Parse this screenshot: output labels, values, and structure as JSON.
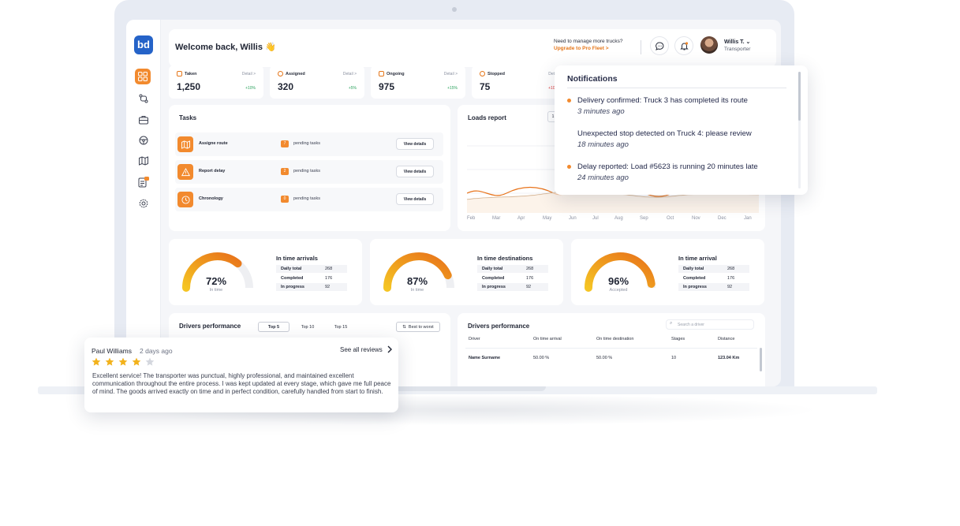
{
  "header": {
    "welcome": "Welcome back, Willis 👋",
    "promo_line1": "Need to manage more trucks?",
    "promo_line2": "Upgrade to Pro Fleet >",
    "user_name": "Willis T.  ⌄",
    "user_role": "Transporter"
  },
  "stats": [
    {
      "label": "Taken",
      "detail": "Detail >",
      "value": "1,250",
      "delta": "+10%",
      "delta_color": "#2fa360"
    },
    {
      "label": "Assigned",
      "detail": "Detail >",
      "value": "320",
      "delta": "+5%",
      "delta_color": "#2fa360"
    },
    {
      "label": "Ongoing",
      "detail": "Detail >",
      "value": "975",
      "delta": "+15%",
      "delta_color": "#2fa360"
    },
    {
      "label": "Stopped",
      "detail": "Detail",
      "value": "75",
      "delta": "+10%",
      "delta_color": "#e03b3b"
    }
  ],
  "tasks": {
    "title": "Tasks",
    "rows": [
      {
        "name": "Assigne route",
        "count": "7",
        "pending": "pending tasks",
        "button": "View details",
        "icon": "map-icon"
      },
      {
        "name": "Report delay",
        "count": "2",
        "pending": "pending tasks",
        "button": "View details",
        "icon": "warning-icon"
      },
      {
        "name": "Chronology",
        "count": "0",
        "pending": "pending tasks",
        "button": "View details",
        "icon": "clock-icon"
      }
    ]
  },
  "loads_report": {
    "title": "Loads report",
    "months": [
      "Feb",
      "Mar",
      "Apr",
      "May",
      "Jun",
      "Jul",
      "Aug",
      "Sep",
      "Oct",
      "Nov",
      "Dec",
      "Jan"
    ]
  },
  "gauges": [
    {
      "title": "In time arrivals",
      "pct_text": "72%",
      "sub": "In time",
      "pct": 72,
      "rows": [
        [
          "Daily total",
          "268"
        ],
        [
          "Completed",
          "176"
        ],
        [
          "In progress",
          "92"
        ]
      ]
    },
    {
      "title": "In time destinations",
      "pct_text": "87%",
      "sub": "In time",
      "pct": 87,
      "rows": [
        [
          "Daily total",
          "268"
        ],
        [
          "Completed",
          "176"
        ],
        [
          "In progress",
          "92"
        ]
      ]
    },
    {
      "title": "In time arrival",
      "pct_text": "96%",
      "sub": "Accepted",
      "pct": 96,
      "rows": [
        [
          "Daily total",
          "268"
        ],
        [
          "Completed",
          "176"
        ],
        [
          "In progress",
          "92"
        ]
      ]
    }
  ],
  "drivers_left": {
    "title": "Drivers performance",
    "tabs": [
      "Top 5",
      "Top 10",
      "Top 15"
    ],
    "sort": "Best to worst"
  },
  "drivers_right": {
    "title": "Drivers performance",
    "search_placeholder": "Search a driver",
    "columns": [
      "Driver",
      "On time arrival",
      "On time destination",
      "Stages",
      "Distance"
    ],
    "row": [
      "Name Surname",
      "50.00 %",
      "50.00 %",
      "10",
      "123.04 Km"
    ]
  },
  "notifications": {
    "title": "Notifications",
    "items": [
      {
        "text": "Delivery confirmed: Truck 3 has completed its route",
        "time": "3 minutes ago",
        "unread": true
      },
      {
        "text": "Unexpected stop detected on Truck 4: please review",
        "time": "18 minutes ago",
        "unread": false
      },
      {
        "text": "Delay reported: Load #5623 is running 20 minutes late",
        "time": "24 minutes ago",
        "unread": true
      }
    ]
  },
  "review": {
    "name": "Paul Williams",
    "date": "2 days ago",
    "see_all": "See all reviews",
    "rating": 4,
    "max_rating": 5,
    "text": "Excellent service! The transporter was punctual, highly professional, and maintained excellent communication throughout the entire process. I was kept updated at every stage, which gave me full peace of mind. The goods arrived exactly on time and in perfect condition, carefully handled from start to finish."
  },
  "colors": {
    "accent": "#f28a2e",
    "brand": "#2563c8",
    "gauge_start": "#f5c423",
    "gauge_end": "#e8731a"
  }
}
